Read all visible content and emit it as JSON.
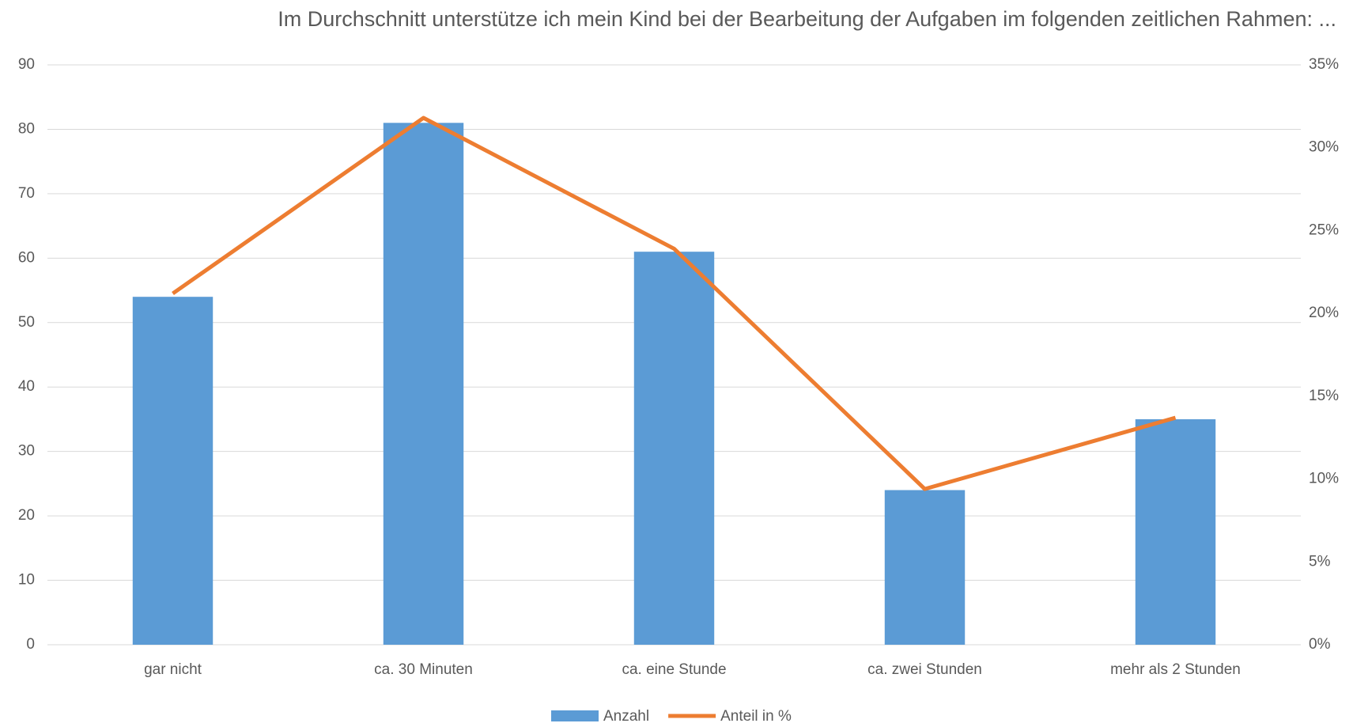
{
  "chart_data": {
    "type": "bar_line",
    "title": "Im Durchschnitt unterstütze ich mein Kind bei der Bearbeitung der Aufgaben im folgenden zeitlichen Rahmen: ...",
    "categories": [
      "gar nicht",
      "ca. 30 Minuten",
      "ca. eine Stunde",
      "ca. zwei Stunden",
      "mehr als 2 Stunden"
    ],
    "series": [
      {
        "name": "Anzahl",
        "color": "#5b9bd5",
        "type": "bar",
        "values": [
          54,
          81,
          61,
          24,
          35
        ]
      },
      {
        "name": "Anteil in %",
        "color": "#ed7d31",
        "type": "line",
        "axis": "y2",
        "values": [
          21.2,
          31.8,
          23.9,
          9.4,
          13.7
        ]
      }
    ],
    "ylim": [
      0,
      90
    ],
    "yticks": [
      0,
      10,
      20,
      30,
      40,
      50,
      60,
      70,
      80,
      90
    ],
    "y2lim": [
      0,
      35
    ],
    "y2ticks": [
      {
        "value": 0,
        "label": "0%"
      },
      {
        "value": 5,
        "label": "5%"
      },
      {
        "value": 10,
        "label": "10%"
      },
      {
        "value": 15,
        "label": "15%"
      },
      {
        "value": 20,
        "label": "20%"
      },
      {
        "value": 25,
        "label": "25%"
      },
      {
        "value": 30,
        "label": "30%"
      },
      {
        "value": 35,
        "label": "35%"
      }
    ],
    "grid": true,
    "legend": "bottom"
  }
}
